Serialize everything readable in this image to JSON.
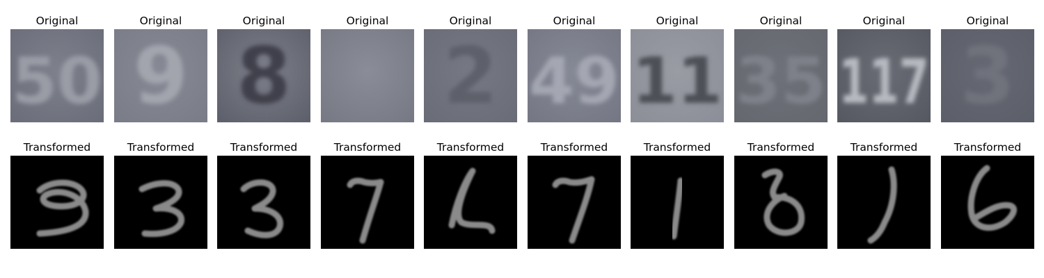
{
  "rows": [
    {
      "name": "original",
      "title": "Original",
      "panels": [
        {
          "digit": "50",
          "bg": "#6b6e7a",
          "bg2": "#7e818c",
          "ink": "#9a9ca6"
        },
        {
          "digit": "9",
          "bg": "#7a7d88",
          "bg2": "#878a95",
          "ink": "#a3a5ae"
        },
        {
          "digit": "8",
          "bg": "#5e606b",
          "bg2": "#7d7f89",
          "ink": "#3f414b"
        },
        {
          "digit": "",
          "bg": "#777a85",
          "bg2": "#8a8d97",
          "ink": "#8a8d97"
        },
        {
          "digit": "2",
          "bg": "#6a6d78",
          "bg2": "#767984",
          "ink": "#5d606a"
        },
        {
          "digit": "49",
          "bg": "#757884",
          "bg2": "#868996",
          "ink": "#a4a7b2"
        },
        {
          "digit": "11",
          "bg": "#8c8f98",
          "bg2": "#9a9ca4",
          "ink": "#4d4f57"
        },
        {
          "digit": "35",
          "bg": "#65686f",
          "bg2": "#6e7179",
          "ink": "#7e8189"
        },
        {
          "digit": "117",
          "bg": "#575962",
          "bg2": "#6a6c75",
          "ink": "#b8bac1"
        },
        {
          "digit": "3",
          "bg": "#5c5f69",
          "bg2": "#666973",
          "ink": "#6f727c"
        }
      ]
    },
    {
      "name": "transformed",
      "title": "Transformed",
      "panels": [
        {
          "digit": "9",
          "ink": "#8a8a8a"
        },
        {
          "digit": "3",
          "ink": "#8a8a8a"
        },
        {
          "digit": "3",
          "ink": "#8a8a8a"
        },
        {
          "digit": "7",
          "ink": "#8a8a8a"
        },
        {
          "digit": "2",
          "ink": "#8a8a8a"
        },
        {
          "digit": "7",
          "ink": "#8a8a8a"
        },
        {
          "digit": "1",
          "ink": "#8a8a8a"
        },
        {
          "digit": "8",
          "ink": "#8a8a8a"
        },
        {
          "digit": "1",
          "ink": "#8a8a8a"
        },
        {
          "digit": "6",
          "ink": "#8a8a8a"
        }
      ]
    }
  ]
}
